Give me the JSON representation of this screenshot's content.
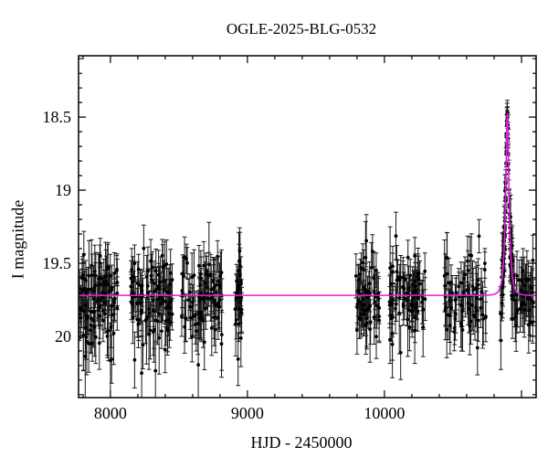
{
  "figure": {
    "title": "OGLE-2025-BLG-0532",
    "xlabel": "HJD - 2450000",
    "ylabel": "I magnitude"
  },
  "colors": {
    "background": "#ffffff",
    "frame": "#000000",
    "data_points": "#000000",
    "error_bars": "#1a1a1a",
    "model_curve": "#e020e0"
  },
  "chart_data": {
    "type": "scatter",
    "title": "OGLE-2025-BLG-0532",
    "xlabel": "HJD - 2450000",
    "ylabel": "I magnitude",
    "legend": "none",
    "grid": "off",
    "x_axis": {
      "lim": [
        7767,
        11107
      ],
      "major_ticks": [
        8000,
        9000,
        10000,
        11000
      ],
      "tick_labels": [
        "8000",
        "9000",
        "10000"
      ],
      "minor_step": 200
    },
    "y_axis": {
      "inverted": true,
      "lim": [
        18.08,
        20.42
      ],
      "major_ticks": [
        18.5,
        19,
        19.5,
        20
      ],
      "tick_labels": [
        "18.5",
        "19",
        "19.5",
        "20"
      ],
      "minor_step": 0.1
    },
    "baseline_mag": 19.72,
    "peak": {
      "t": 10897,
      "mag": 18.47
    },
    "model": {
      "kind": "paczynski_point_lens",
      "t0": 10897,
      "tE": 25,
      "u0": 0.33,
      "I_base": 19.72,
      "I_peak": 18.47
    },
    "seasons": [
      {
        "t_start": 7770,
        "t_end": 8050,
        "n": 105,
        "mean_mag": 19.73,
        "scatter": 0.14,
        "err_range": [
          0.1,
          0.32
        ],
        "follows_model": false
      },
      {
        "t_start": 8148,
        "t_end": 8452,
        "n": 105,
        "mean_mag": 19.72,
        "scatter": 0.14,
        "err_range": [
          0.1,
          0.32
        ],
        "follows_model": false
      },
      {
        "t_start": 8520,
        "t_end": 8815,
        "n": 90,
        "mean_mag": 19.73,
        "scatter": 0.15,
        "err_range": [
          0.1,
          0.34
        ],
        "follows_model": false
      },
      {
        "t_start": 8910,
        "t_end": 8960,
        "n": 26,
        "mean_mag": 19.74,
        "scatter": 0.15,
        "err_range": [
          0.1,
          0.3
        ],
        "follows_model": false
      },
      {
        "t_start": 9790,
        "t_end": 9965,
        "n": 58,
        "mean_mag": 19.72,
        "scatter": 0.14,
        "err_range": [
          0.1,
          0.32
        ],
        "follows_model": false
      },
      {
        "t_start": 10035,
        "t_end": 10300,
        "n": 78,
        "mean_mag": 19.72,
        "scatter": 0.14,
        "err_range": [
          0.1,
          0.32
        ],
        "follows_model": false
      },
      {
        "t_start": 10435,
        "t_end": 10750,
        "n": 72,
        "mean_mag": 19.73,
        "scatter": 0.14,
        "err_range": [
          0.1,
          0.32
        ],
        "follows_model": false
      },
      {
        "t_start": 10845,
        "t_end": 11095,
        "n": 130,
        "mean_mag": 19.72,
        "scatter": 0.13,
        "err_range": [
          0.05,
          0.25
        ],
        "follows_model": true
      }
    ]
  }
}
